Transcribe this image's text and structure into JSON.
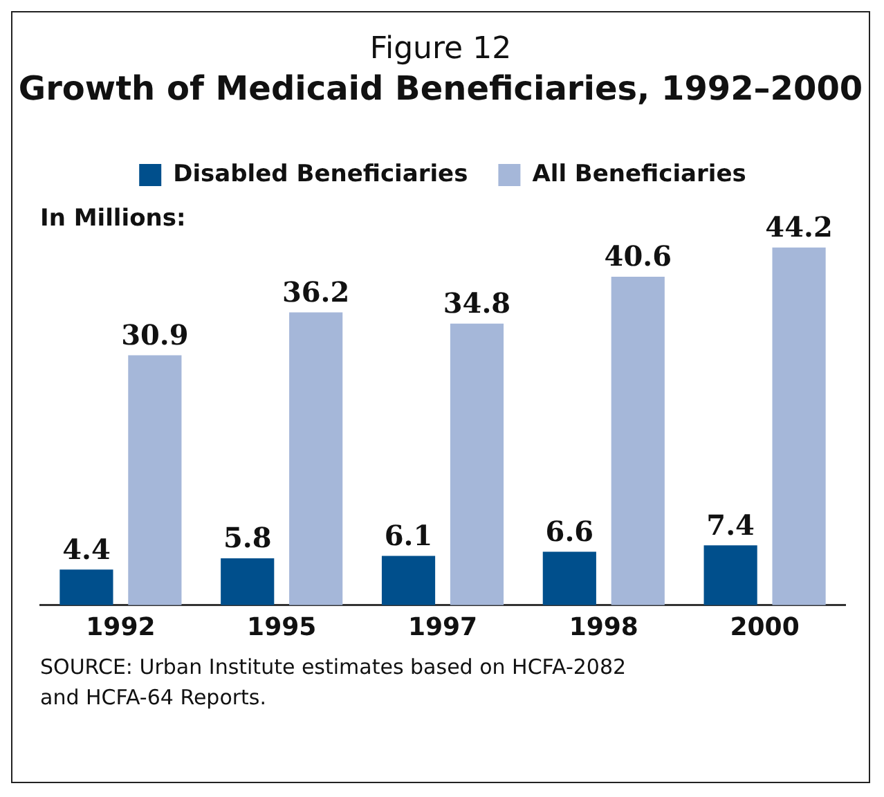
{
  "chart_data": {
    "type": "bar",
    "title": "Growth of Medicaid Beneficiaries, 1992–2000",
    "subtitle": "Figure 12",
    "ylabel": "In Millions:",
    "categories": [
      "1992",
      "1995",
      "1997",
      "1998",
      "2000"
    ],
    "series": [
      {
        "name": "Disabled Beneficiaries",
        "color": "#004f8c",
        "values": [
          4.4,
          5.8,
          6.1,
          6.6,
          7.4
        ]
      },
      {
        "name": "All Beneficiaries",
        "color": "#a5b7d9",
        "values": [
          30.9,
          36.2,
          34.8,
          40.6,
          44.2
        ]
      }
    ],
    "data_labels": true,
    "legend": "top",
    "grid": false,
    "annotations": [
      "SOURCE: Urban Institute estimates based on HCFA-2082 and HCFA-64 Reports."
    ]
  }
}
